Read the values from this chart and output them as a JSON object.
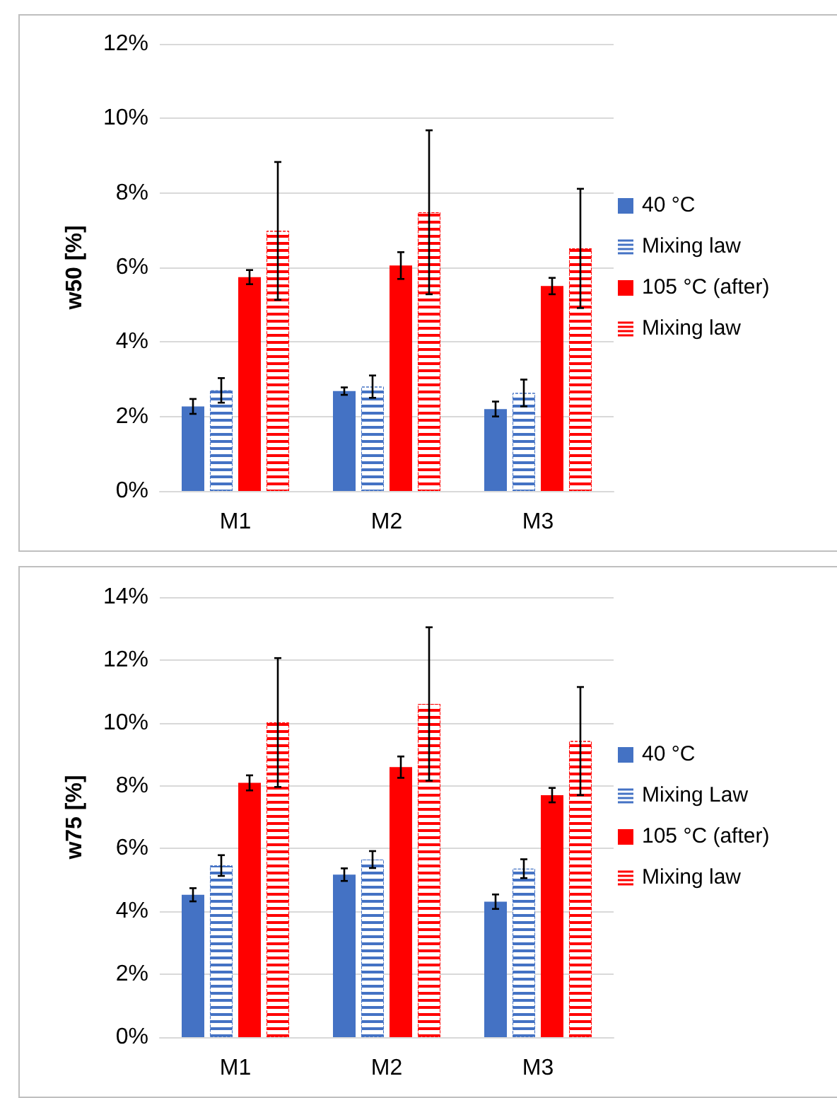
{
  "chart_data": [
    {
      "type": "bar",
      "ylabel": "w50 [%]",
      "categories": [
        "M1",
        "M2",
        "M3"
      ],
      "series": [
        {
          "name": "40 °C",
          "color": "#4472c4",
          "values": [
            2.27,
            2.68,
            2.2
          ],
          "errors": [
            0.2,
            0.1,
            0.2
          ]
        },
        {
          "name": "Mixing law",
          "color": "#4472c4",
          "values": [
            2.7,
            2.8,
            2.63
          ],
          "errors": [
            0.33,
            0.3,
            0.36
          ]
        },
        {
          "name": "105 °C (after)",
          "color": "#ff0000",
          "values": [
            5.74,
            6.05,
            5.5
          ],
          "errors": [
            0.19,
            0.36,
            0.22
          ]
        },
        {
          "name": "Mixing law",
          "color": "#ff0000",
          "values": [
            6.98,
            7.48,
            6.51
          ],
          "errors": [
            1.85,
            2.2,
            1.6
          ]
        }
      ],
      "ylim": [
        0,
        12
      ],
      "yticks": [
        {
          "value": 0,
          "label": "0%"
        },
        {
          "value": 2,
          "label": "2%"
        },
        {
          "value": 4,
          "label": "4%"
        },
        {
          "value": 6,
          "label": "6%"
        },
        {
          "value": 8,
          "label": "8%"
        },
        {
          "value": 10,
          "label": "10%"
        },
        {
          "value": 12,
          "label": "12%"
        }
      ],
      "grid": "y",
      "legend": "right"
    },
    {
      "type": "bar",
      "ylabel": "w75 [%]",
      "categories": [
        "M1",
        "M2",
        "M3"
      ],
      "series": [
        {
          "name": "40 °C",
          "color": "#4472c4",
          "values": [
            4.53,
            5.17,
            4.31
          ],
          "errors": [
            0.21,
            0.2,
            0.23
          ]
        },
        {
          "name": "Mixing Law",
          "color": "#4472c4",
          "values": [
            5.46,
            5.65,
            5.36
          ],
          "errors": [
            0.33,
            0.27,
            0.3
          ]
        },
        {
          "name": "105 °C (after)",
          "color": "#ff0000",
          "values": [
            8.09,
            8.59,
            7.7
          ],
          "errors": [
            0.24,
            0.34,
            0.23
          ]
        },
        {
          "name": "Mixing law",
          "color": "#ff0000",
          "values": [
            10.01,
            10.6,
            9.42
          ],
          "errors": [
            2.05,
            2.44,
            1.72
          ]
        }
      ],
      "ylim": [
        0,
        14
      ],
      "yticks": [
        {
          "value": 0,
          "label": "0%"
        },
        {
          "value": 2,
          "label": "2%"
        },
        {
          "value": 4,
          "label": "4%"
        },
        {
          "value": 6,
          "label": "6%"
        },
        {
          "value": 8,
          "label": "8%"
        },
        {
          "value": 10,
          "label": "10%"
        },
        {
          "value": 12,
          "label": "12%"
        },
        {
          "value": 14,
          "label": "14%"
        }
      ],
      "grid": "y",
      "legend": "right"
    }
  ]
}
